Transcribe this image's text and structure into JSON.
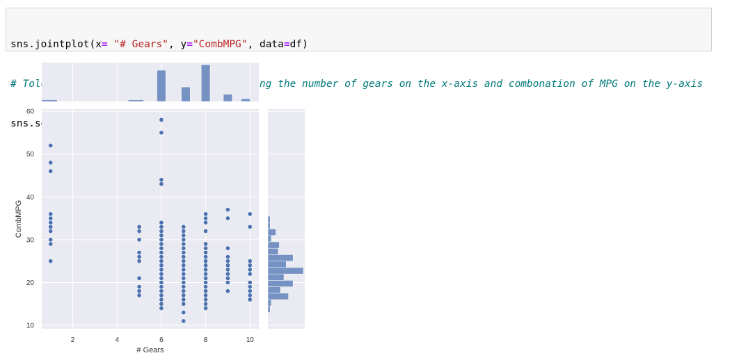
{
  "code_cell": {
    "line1": {
      "p1": "sns.jointplot(x",
      "op1": "=",
      "p2": " ",
      "s1": "\"# Gears\"",
      "p3": ", y",
      "op2": "=",
      "s2": "\"CombMPG\"",
      "p4": ", data",
      "op3": "=",
      "p5": "df)"
    },
    "line2": "# Told Seaborn to make a joint plot showing the number of gears on the x-axis and combonation of MPG on the y-axis",
    "line3": "sns.set()"
  },
  "chart_data": {
    "type": "scatter",
    "xlabel": "# Gears",
    "ylabel": "CombMPG",
    "xlim": [
      0.6,
      10.4
    ],
    "ylim": [
      9.2,
      60.5
    ],
    "x_ticks": [
      2,
      4,
      6,
      8,
      10
    ],
    "y_ticks": [
      10,
      20,
      30,
      40,
      50,
      60
    ],
    "grid": true,
    "style": "seaborn-darkgrid",
    "colors": {
      "background": "#eaeaf2",
      "grid": "#ffffff",
      "point": "#4c72b0",
      "point_edge": "#ffffff",
      "hist": "#7592c3"
    },
    "points": [
      {
        "x": 1,
        "y": [
          25,
          29,
          30,
          32,
          33,
          34,
          35,
          36,
          46,
          48,
          52
        ]
      },
      {
        "x": 5,
        "y": [
          17,
          18,
          19,
          21,
          25,
          26,
          27,
          30,
          32,
          33
        ]
      },
      {
        "x": 6,
        "y": [
          14,
          15,
          16,
          17,
          18,
          19,
          20,
          21,
          22,
          23,
          24,
          25,
          26,
          27,
          28,
          29,
          30,
          31,
          32,
          33,
          34,
          43,
          44,
          55,
          58
        ]
      },
      {
        "x": 7,
        "y": [
          11,
          13,
          15,
          16,
          17,
          18,
          19,
          20,
          21,
          22,
          23,
          24,
          25,
          26,
          27,
          28,
          29,
          30,
          31,
          32,
          33
        ]
      },
      {
        "x": 8,
        "y": [
          14,
          15,
          16,
          17,
          18,
          19,
          20,
          21,
          22,
          23,
          24,
          25,
          26,
          27,
          28,
          29,
          32,
          34,
          35,
          36
        ]
      },
      {
        "x": 9,
        "y": [
          18,
          20,
          21,
          22,
          23,
          24,
          25,
          26,
          28,
          35,
          37
        ]
      },
      {
        "x": 10,
        "y": [
          16,
          17,
          18,
          19,
          20,
          22,
          23,
          24,
          25,
          33,
          36
        ]
      }
    ],
    "marginal_x": {
      "bins": [
        {
          "x0": 0.6,
          "x1": 1.3,
          "count": 3
        },
        {
          "x0": 4.5,
          "x1": 5.2,
          "count": 3
        },
        {
          "x0": 5.8,
          "x1": 6.2,
          "count": 56
        },
        {
          "x0": 6.9,
          "x1": 7.3,
          "count": 26
        },
        {
          "x0": 7.8,
          "x1": 8.2,
          "count": 66
        },
        {
          "x0": 8.8,
          "x1": 9.2,
          "count": 13
        },
        {
          "x0": 9.6,
          "x1": 10.0,
          "count": 5
        }
      ],
      "max": 66
    },
    "marginal_y": {
      "bins": [
        {
          "y0": 13,
          "y1": 14.5,
          "count": 2
        },
        {
          "y0": 14.5,
          "y1": 16,
          "count": 3
        },
        {
          "y0": 16,
          "y1": 17.5,
          "count": 18
        },
        {
          "y0": 17.5,
          "y1": 19,
          "count": 11
        },
        {
          "y0": 19,
          "y1": 20.5,
          "count": 22
        },
        {
          "y0": 20.5,
          "y1": 22,
          "count": 14
        },
        {
          "y0": 22,
          "y1": 23.5,
          "count": 31
        },
        {
          "y0": 23.5,
          "y1": 25,
          "count": 16
        },
        {
          "y0": 25,
          "y1": 26.5,
          "count": 22
        },
        {
          "y0": 26.5,
          "y1": 28,
          "count": 9
        },
        {
          "y0": 28,
          "y1": 29.5,
          "count": 10
        },
        {
          "y0": 29.5,
          "y1": 31,
          "count": 3
        },
        {
          "y0": 31,
          "y1": 32.5,
          "count": 7
        },
        {
          "y0": 32.5,
          "y1": 34,
          "count": 2
        },
        {
          "y0": 34,
          "y1": 35.5,
          "count": 2
        }
      ],
      "max": 31
    }
  }
}
